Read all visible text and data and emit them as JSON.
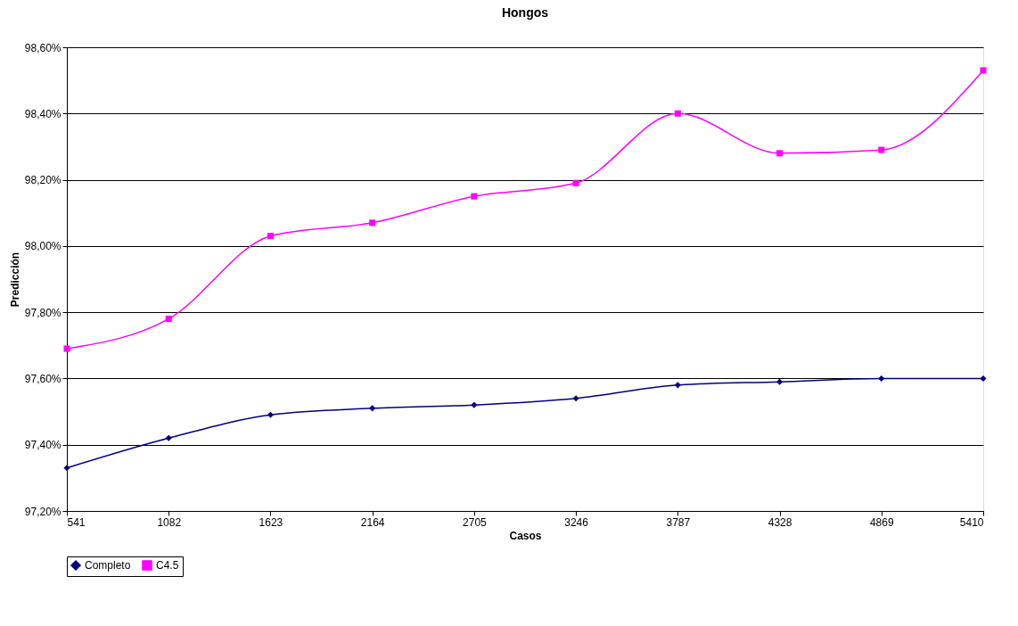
{
  "chart_data": {
    "type": "line",
    "title": "Hongos",
    "xlabel": "Casos",
    "ylabel": "Predicción",
    "categories": [
      "541",
      "1082",
      "1623",
      "2164",
      "2705",
      "3246",
      "3787",
      "4328",
      "4869",
      "5410"
    ],
    "series": [
      {
        "name": "Completo",
        "color": "#000080",
        "marker": "diamond",
        "values": [
          97.33,
          97.42,
          97.49,
          97.51,
          97.52,
          97.54,
          97.58,
          97.59,
          97.6,
          97.6
        ]
      },
      {
        "name": "C4.5",
        "color": "#ff00ff",
        "marker": "square",
        "values": [
          97.69,
          97.78,
          98.03,
          98.07,
          98.15,
          98.19,
          98.4,
          98.28,
          98.29,
          98.53
        ]
      }
    ],
    "ylim": [
      97.2,
      98.6
    ],
    "yticks": [
      {
        "value": 97.2,
        "label": "97,20%"
      },
      {
        "value": 97.4,
        "label": "97,40%"
      },
      {
        "value": 97.6,
        "label": "97,60%"
      },
      {
        "value": 97.8,
        "label": "97,80%"
      },
      {
        "value": 98.0,
        "label": "98,00%"
      },
      {
        "value": 98.2,
        "label": "98,20%"
      },
      {
        "value": 98.4,
        "label": "98,40%"
      },
      {
        "value": 98.6,
        "label": "98,60%"
      }
    ],
    "grid": "y",
    "legend": "bottom",
    "line_style": "solid"
  }
}
